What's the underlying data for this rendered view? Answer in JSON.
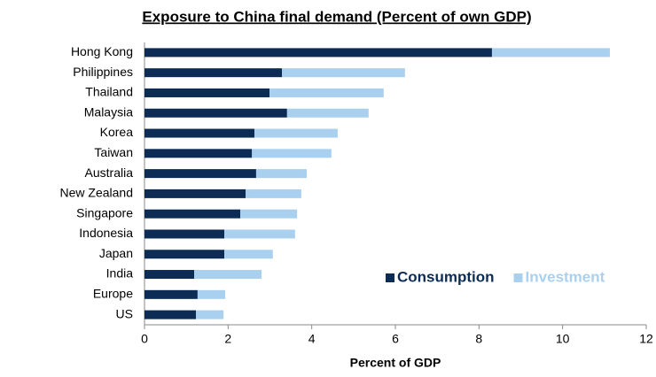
{
  "chart_data": {
    "type": "stacked-barh",
    "title": "Exposure to China final demand (Percent of own GDP)",
    "x_label": "Percent of GDP",
    "categories": [
      "Hong Kong",
      "Philippines",
      "Thailand",
      "Malaysia",
      "Korea",
      "Taiwan",
      "Australia",
      "New Zealand",
      "Singapore",
      "Indonesia",
      "Japan",
      "India",
      "Europe",
      "US"
    ],
    "series": [
      {
        "name": "Consumption",
        "color": "#0c2c56",
        "values": [
          8.31,
          3.29,
          2.99,
          3.41,
          2.63,
          2.57,
          2.67,
          2.42,
          2.29,
          1.91,
          1.91,
          1.19,
          1.27,
          1.23
        ]
      },
      {
        "name": "Investment",
        "color": "#a9d1ef",
        "values": [
          2.82,
          2.94,
          2.73,
          1.95,
          1.99,
          1.9,
          1.21,
          1.33,
          1.36,
          1.69,
          1.16,
          1.61,
          0.66,
          0.66
        ]
      }
    ],
    "xlim": [
      0,
      12
    ],
    "xticks": [
      0,
      2,
      4,
      6,
      8,
      10,
      12
    ],
    "grid": false,
    "legend": "lower right"
  }
}
